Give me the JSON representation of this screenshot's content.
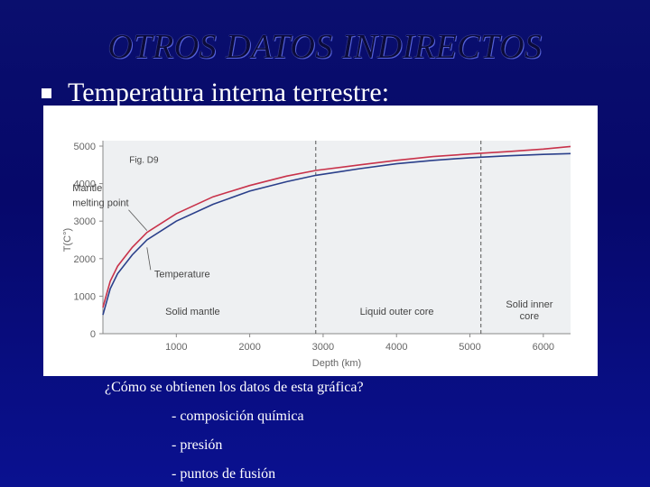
{
  "slide": {
    "title": "OTROS DATOS INDIRECTOS",
    "bullet": "Temperatura interna terrestre:",
    "question": "¿Cómo se obtienen los datos de esta gráfica?",
    "items": [
      "- composición química",
      "- presión",
      "- puntos de fusión"
    ]
  },
  "chart_data": {
    "type": "line",
    "figure_label": "Fig. D9",
    "xlabel": "Depth (km)",
    "ylabel": "T(C°)",
    "xlim": [
      0,
      6371
    ],
    "ylim": [
      0,
      5000
    ],
    "xticks": [
      1000,
      2000,
      3000,
      4000,
      5000,
      6000
    ],
    "yticks": [
      0,
      1000,
      2000,
      3000,
      4000,
      5000
    ],
    "series": [
      {
        "name": "Mantle melting point",
        "color": "#c8324a",
        "x": [
          0,
          100,
          200,
          400,
          600,
          1000,
          1500,
          2000,
          2500,
          2900,
          3500,
          4000,
          4500,
          5000,
          5500,
          6000,
          6371
        ],
        "y": [
          700,
          1400,
          1800,
          2300,
          2700,
          3200,
          3650,
          3950,
          4200,
          4350,
          4500,
          4620,
          4720,
          4790,
          4850,
          4920,
          4990
        ]
      },
      {
        "name": "Temperature",
        "color": "#2a3f8a",
        "x": [
          0,
          100,
          200,
          400,
          600,
          1000,
          1500,
          2000,
          2500,
          2900,
          3500,
          4000,
          4500,
          5000,
          5500,
          6000,
          6371
        ],
        "y": [
          500,
          1200,
          1600,
          2100,
          2500,
          3000,
          3450,
          3800,
          4050,
          4220,
          4400,
          4530,
          4620,
          4690,
          4740,
          4780,
          4800
        ]
      }
    ],
    "boundaries": [
      2900,
      5150
    ],
    "regions": [
      "Solid mantle",
      "Liquid outer core",
      "Solid inner\ncore"
    ],
    "colors": {
      "plot_background": "#eef0f2"
    }
  }
}
